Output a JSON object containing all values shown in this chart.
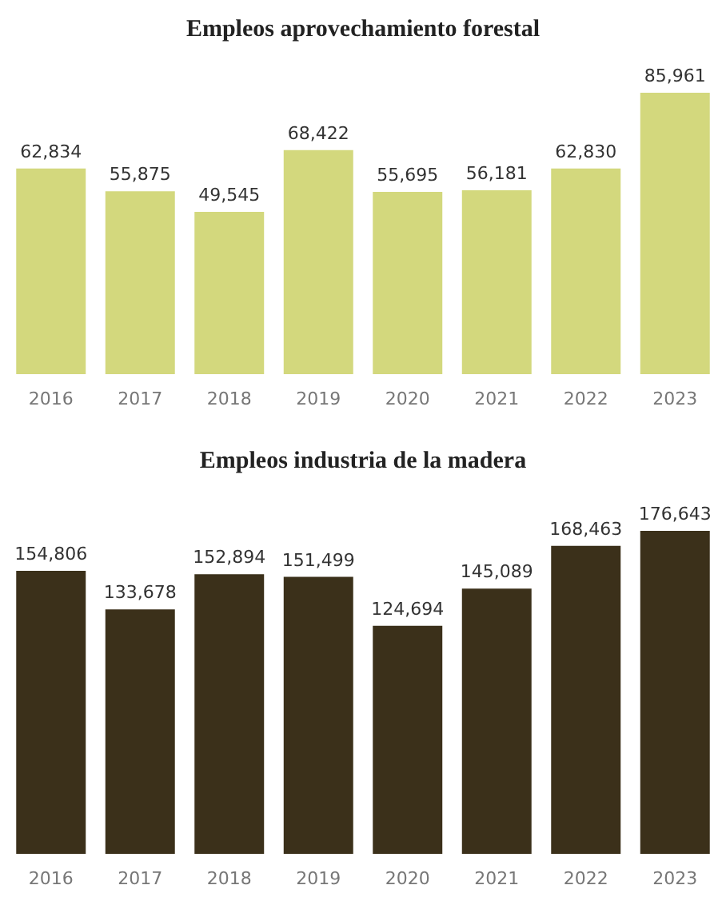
{
  "chart_data": [
    {
      "type": "bar",
      "title": "Empleos aprovechamiento forestal",
      "categories": [
        "2016",
        "2017",
        "2018",
        "2019",
        "2020",
        "2021",
        "2022",
        "2023"
      ],
      "values": [
        62834,
        55875,
        49545,
        68422,
        55695,
        56181,
        62830,
        85961
      ],
      "value_labels": [
        "62,834",
        "55,875",
        "49,545",
        "68,422",
        "55,695",
        "56,181",
        "62,830",
        "85,961"
      ],
      "color": "#d3d87d"
    },
    {
      "type": "bar",
      "title": "Empleos industria de la madera",
      "categories": [
        "2016",
        "2017",
        "2018",
        "2019",
        "2020",
        "2021",
        "2022",
        "2023"
      ],
      "values": [
        154806,
        133678,
        152894,
        151499,
        124694,
        145089,
        168463,
        176643
      ],
      "value_labels": [
        "154,806",
        "133,678",
        "152,894",
        "151,499",
        "124,694",
        "145,089",
        "168,463",
        "176,643"
      ],
      "color": "#3b301a"
    }
  ]
}
